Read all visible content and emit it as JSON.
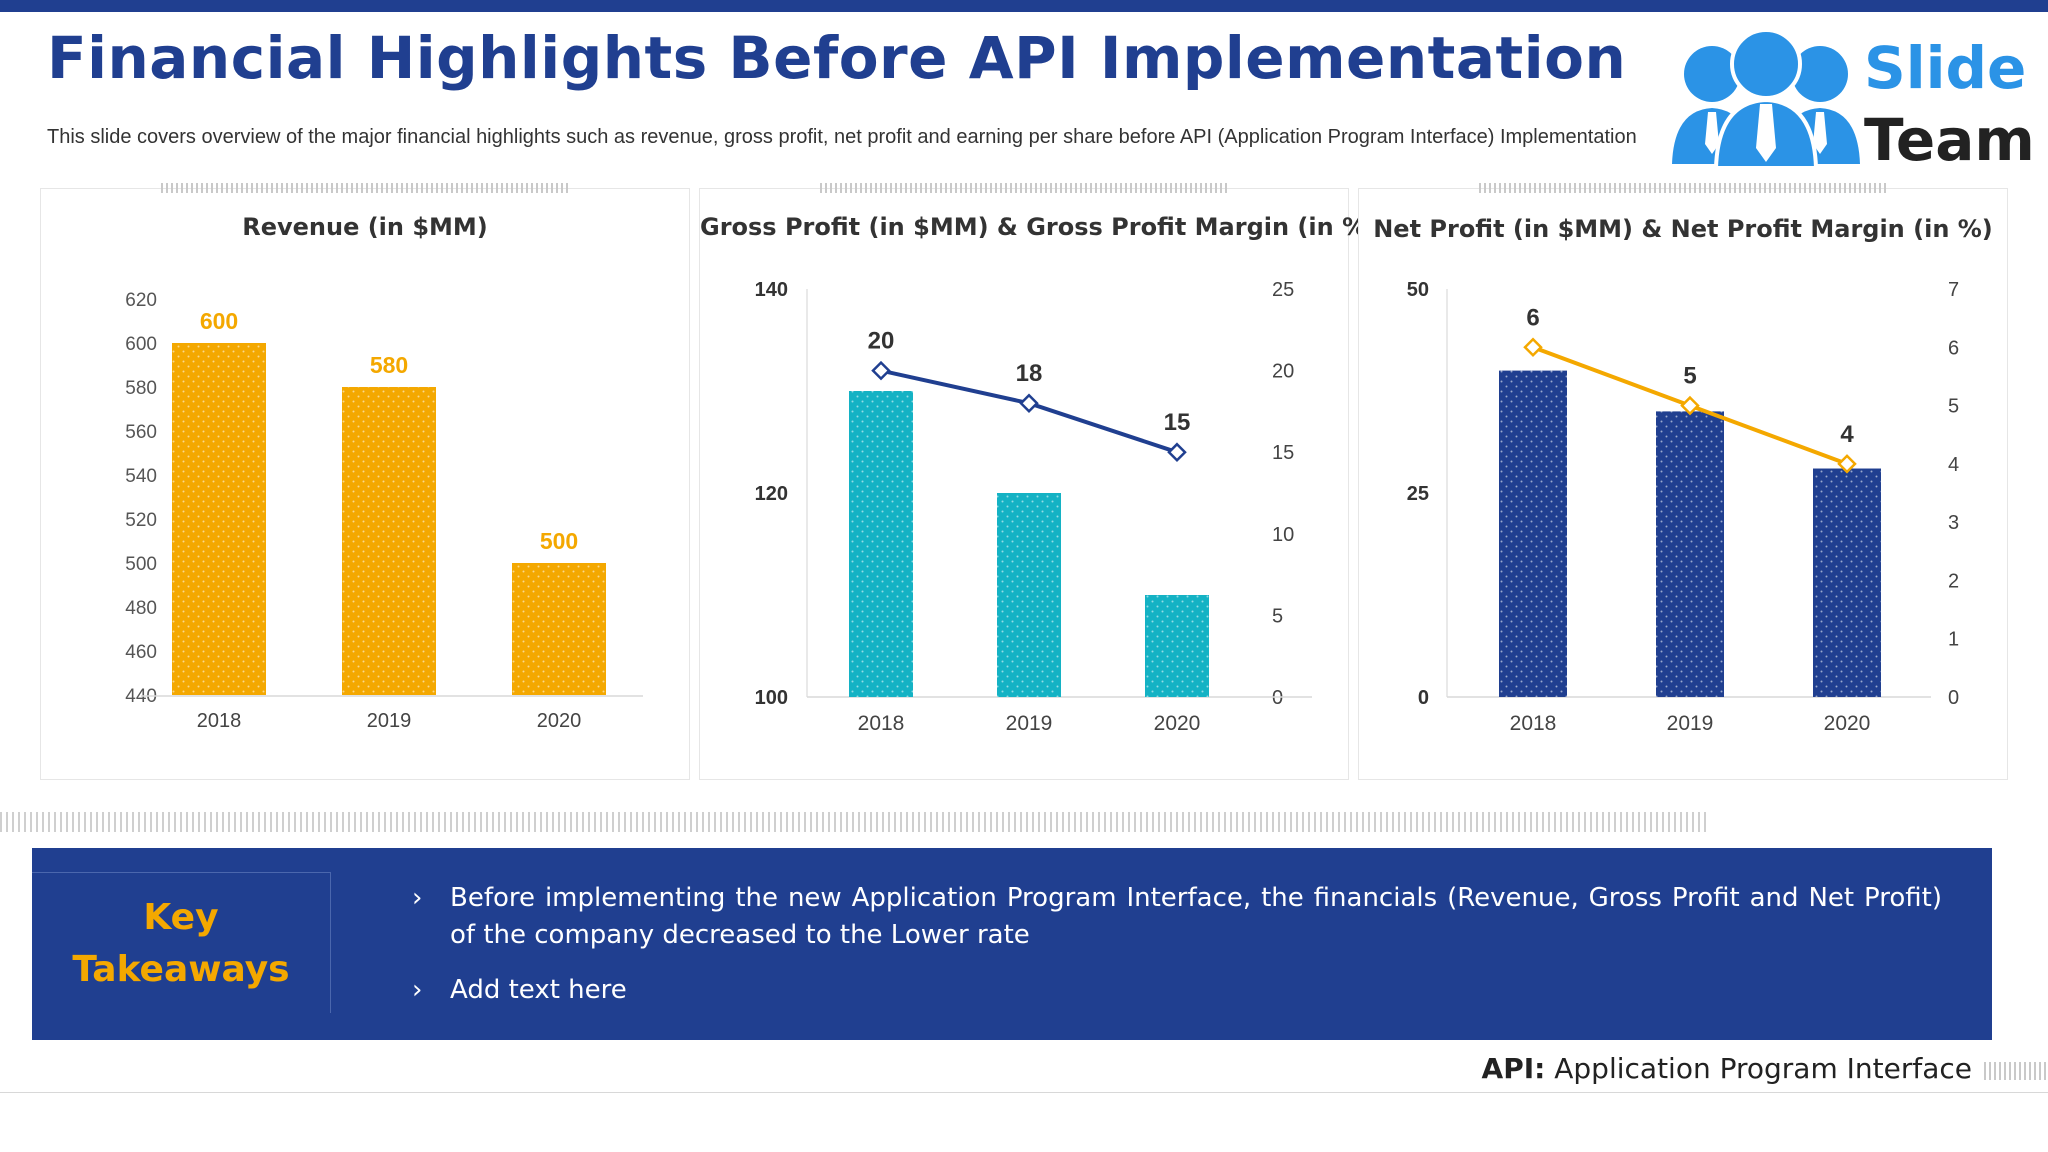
{
  "slide": {
    "title": "Financial Highlights Before API Implementation",
    "subtitle": "This slide covers overview of the major financial highlights such as revenue, gross profit, net profit and earning per share before API (Application Program Interface) Implementation"
  },
  "logo": {
    "line1": "Slide",
    "line2": "Team",
    "icon": "people-group-icon"
  },
  "colors": {
    "navy": "#203f90",
    "orange": "#f4a800",
    "teal": "#14b2c4",
    "logo_blue": "#2b93e6"
  },
  "chart_data": [
    {
      "type": "bar",
      "title": "Revenue (in $MM)",
      "categories": [
        "2018",
        "2019",
        "2020"
      ],
      "values": [
        600,
        580,
        500
      ],
      "ylim": [
        440,
        620
      ],
      "yticks": [
        440,
        460,
        480,
        500,
        520,
        540,
        560,
        580,
        600,
        620
      ],
      "data_labels": [
        "600",
        "580",
        "500"
      ],
      "color": "#f4a800"
    },
    {
      "type": "bar",
      "title": "Gross Profit (in $MM) & Gross Profit Margin (in %)",
      "categories": [
        "2018",
        "2019",
        "2020"
      ],
      "bar_values": [
        130,
        120,
        110
      ],
      "bar_ylim": [
        100,
        140
      ],
      "bar_yticks": [
        100,
        120,
        140
      ],
      "line_values": [
        20,
        18,
        15
      ],
      "line_ylim": [
        0,
        25
      ],
      "line_yticks": [
        0,
        5,
        10,
        15,
        20,
        25
      ],
      "line_labels": [
        "20",
        "18",
        "15"
      ],
      "bar_color": "#14b2c4",
      "line_color": "#203f90"
    },
    {
      "type": "bar",
      "title": "Net Profit (in $MM) & Net Profit Margin (in %)",
      "categories": [
        "2018",
        "2019",
        "2020"
      ],
      "bar_values": [
        40,
        35,
        28
      ],
      "bar_ylim": [
        0,
        50
      ],
      "bar_yticks": [
        0,
        25,
        50
      ],
      "line_values": [
        6,
        5,
        4
      ],
      "line_ylim": [
        0,
        7
      ],
      "line_yticks": [
        0,
        1,
        2,
        3,
        4,
        5,
        6,
        7
      ],
      "line_labels": [
        "6",
        "5",
        "4"
      ],
      "bar_color": "#203f90",
      "line_color": "#f4a800"
    }
  ],
  "key_takeaways": {
    "label": "Key Takeaways",
    "bullet": "›",
    "items": [
      "Before implementing the new Application Program Interface, the financials (Revenue, Gross Profit and Net Profit) of the company decreased to the Lower rate",
      "Add text here"
    ]
  },
  "footer": {
    "term": "API:",
    "definition": "Application Program Interface"
  }
}
